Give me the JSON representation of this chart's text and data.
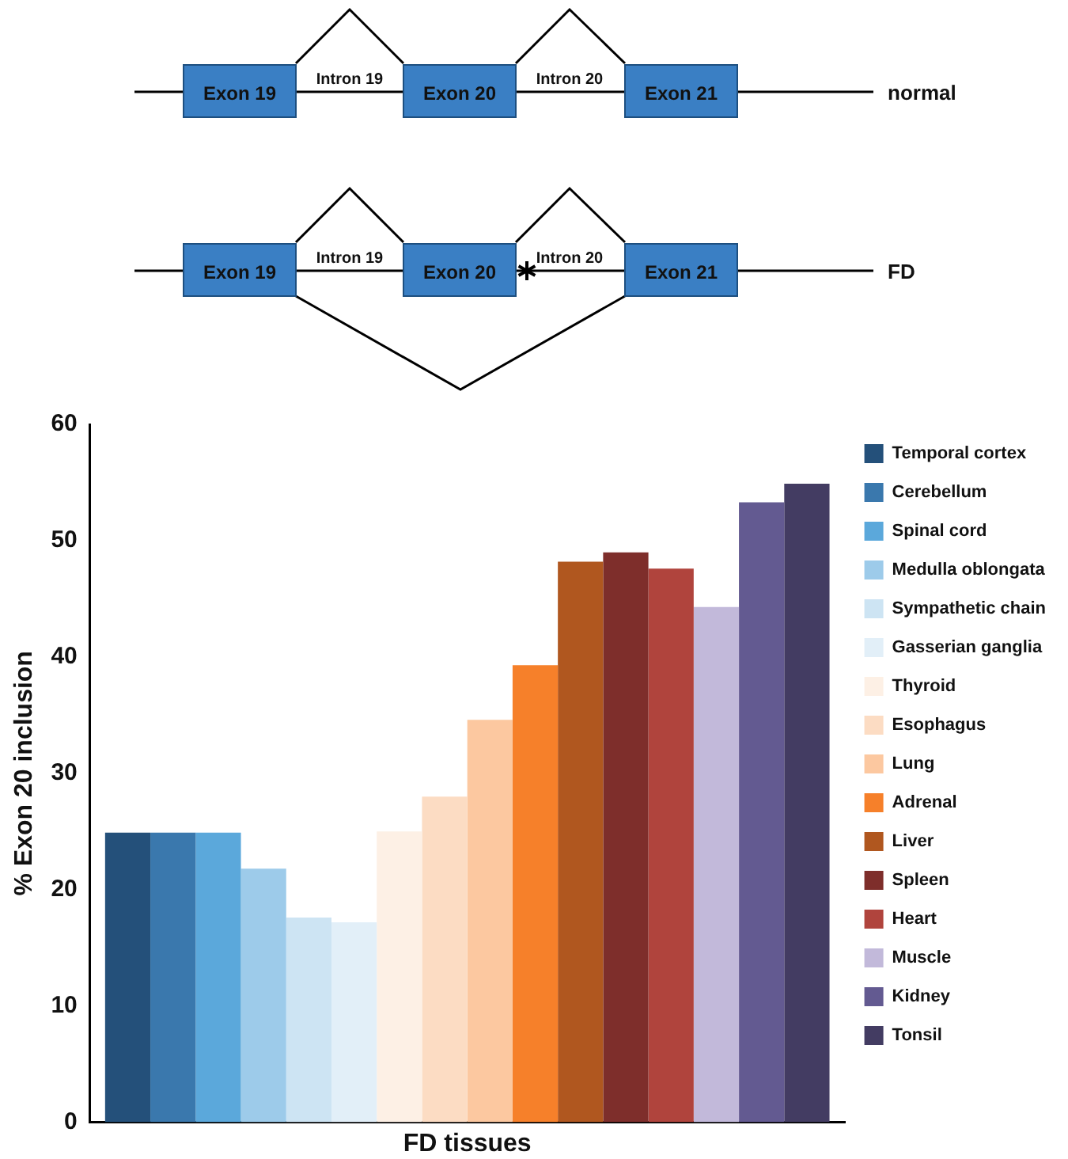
{
  "chart_data": {
    "type": "bar",
    "xlabel": "FD tissues",
    "ylabel": "% Exon 20 inclusion",
    "categories": [
      null
    ],
    "series": [
      {
        "name": "Temporal cortex",
        "color": "#24507a",
        "values": [
          24.9
        ]
      },
      {
        "name": "Cerebellum",
        "color": "#3a78ad",
        "values": [
          24.9
        ]
      },
      {
        "name": "Spinal cord",
        "color": "#5ba8db",
        "values": [
          24.9
        ]
      },
      {
        "name": "Medulla oblongata",
        "color": "#9dcbea",
        "values": [
          21.8
        ]
      },
      {
        "name": "Sympathetic chain",
        "color": "#cde4f3",
        "values": [
          17.6
        ]
      },
      {
        "name": "Gasserian ganglia",
        "color": "#e2eff8",
        "values": [
          17.2
        ]
      },
      {
        "name": "Thyroid",
        "color": "#fdf0e5",
        "values": [
          25.0
        ]
      },
      {
        "name": "Esophagus",
        "color": "#fcdcc3",
        "values": [
          28.0
        ]
      },
      {
        "name": "Lung",
        "color": "#fcc8a0",
        "values": [
          34.6
        ]
      },
      {
        "name": "Adrenal",
        "color": "#f6802a",
        "values": [
          39.3
        ]
      },
      {
        "name": "Liver",
        "color": "#b0571f",
        "values": [
          48.2
        ]
      },
      {
        "name": "Spleen",
        "color": "#7e2e2b",
        "values": [
          49.0
        ]
      },
      {
        "name": "Heart",
        "color": "#b0443d",
        "values": [
          47.6
        ]
      },
      {
        "name": "Muscle",
        "color": "#c2b9da",
        "values": [
          44.3
        ]
      },
      {
        "name": "Kidney",
        "color": "#635a91",
        "values": [
          53.3
        ]
      },
      {
        "name": "Tonsil",
        "color": "#433c62",
        "values": [
          54.9
        ]
      }
    ],
    "ylim": [
      0,
      60
    ],
    "yticks": [
      0,
      10,
      20,
      30,
      40,
      50,
      60
    ],
    "legend": "right",
    "annotations": [
      "Exon 19",
      "Intron 19",
      "Exon 20",
      "Intron 20",
      "Exon 21",
      "normal",
      "Exon 19",
      "Intron 19",
      "Exon 20",
      "Intron 20",
      "Exon 21",
      "FD"
    ]
  }
}
